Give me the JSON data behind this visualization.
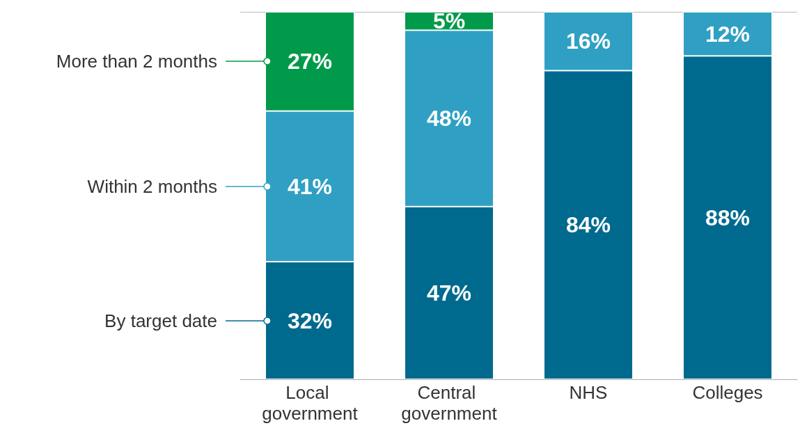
{
  "chart_data": {
    "type": "bar",
    "stacked": true,
    "categories": [
      "Local government",
      "Central government",
      "NHS",
      "Colleges"
    ],
    "series": [
      {
        "name": "By target date",
        "color": "#006a8e",
        "values": [
          32,
          47,
          84,
          88
        ],
        "value_labels": [
          "32%",
          "47%",
          "84%",
          "88%"
        ]
      },
      {
        "name": "Within 2 months",
        "color": "#2fa0c4",
        "values": [
          41,
          48,
          16,
          12
        ],
        "value_labels": [
          "41%",
          "48%",
          "16%",
          "12%"
        ]
      },
      {
        "name": "More than 2 months",
        "color": "#009a4a",
        "values": [
          27,
          5,
          null,
          null
        ],
        "value_labels": [
          "27%",
          "5%",
          null,
          null
        ]
      }
    ],
    "ylim": [
      0,
      100
    ],
    "ref_lines": [
      {
        "axis": "y",
        "value": 100,
        "color": "#bbbbbb"
      }
    ],
    "legend": "left",
    "tick_labels": "x"
  }
}
